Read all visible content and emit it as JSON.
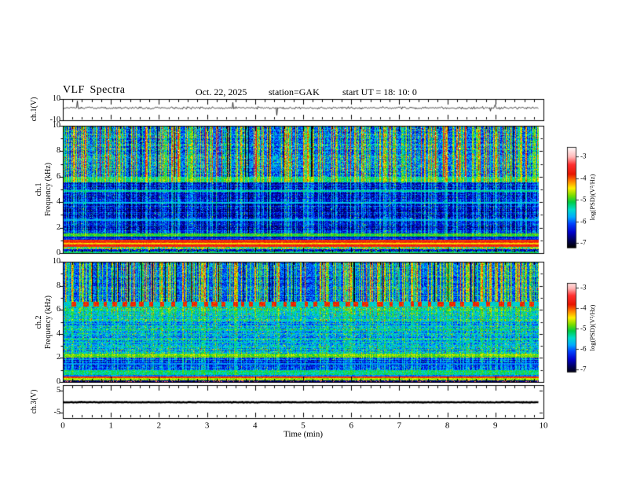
{
  "header": {
    "title": "VLF Spectra",
    "date": "Oct. 22, 2025",
    "station": "station=GAK",
    "start_ut": "start UT =   18: 10: 0"
  },
  "labels": {
    "wave1_y": "ch.1(V)",
    "spec1_ch": "ch.1",
    "spec1_axis": "Frequency (kHz)",
    "spec2_ch": "ch.2",
    "spec2_axis": "Frequency (kHz)",
    "wave3_y": "ch.3(V)",
    "x": "Time  (min)",
    "colorbar": "log(PSD)(V²/Hz)"
  },
  "ticks": {
    "x": [
      "0",
      "1",
      "2",
      "3",
      "4",
      "5",
      "6",
      "7",
      "8",
      "9",
      "10"
    ],
    "wave1_y": [
      {
        "t": "10",
        "v": 10
      },
      {
        "t": "-10",
        "v": -10
      }
    ],
    "spec_y": [
      {
        "t": "10",
        "v": 10
      },
      {
        "t": "8",
        "v": 8
      },
      {
        "t": "6",
        "v": 6
      },
      {
        "t": "4",
        "v": 4
      },
      {
        "t": "2",
        "v": 2
      },
      {
        "t": "0",
        "v": 0
      }
    ],
    "wave3_y": [
      {
        "t": "5",
        "v": 5
      },
      {
        "t": "-5",
        "v": -5
      }
    ],
    "colorbar": [
      {
        "t": "-3",
        "v": -3
      },
      {
        "t": "-4",
        "v": -4
      },
      {
        "t": "-5",
        "v": -5
      },
      {
        "t": "-6",
        "v": -6
      },
      {
        "t": "-7",
        "v": -7
      }
    ]
  },
  "chart_data": {
    "type": "heatmap",
    "title": "VLF Spectra",
    "subtitle": "Oct. 22, 2025  station=GAK  start UT = 18:10:0",
    "x": {
      "label": "Time (min)",
      "range": [
        0,
        10
      ],
      "major_step": 1,
      "minor_step": 0.2,
      "data_end": 9.9
    },
    "colorbar": {
      "label": "log(PSD)(V²/Hz)",
      "tick_values": [
        -3,
        -4,
        -5,
        -6,
        -7
      ],
      "range": [
        -7,
        -3
      ]
    },
    "colormap": [
      [
        -2.55,
        "#ffffff"
      ],
      [
        -3.0,
        "#ffb6b6"
      ],
      [
        -3.35,
        "#ff3030"
      ],
      [
        -3.8,
        "#e81500"
      ],
      [
        -4.1,
        "#ff7a00"
      ],
      [
        -4.45,
        "#ffee00"
      ],
      [
        -4.8,
        "#77dd00"
      ],
      [
        -5.1,
        "#00cc44"
      ],
      [
        -5.45,
        "#00ddcc"
      ],
      [
        -5.8,
        "#00aaff"
      ],
      [
        -6.1,
        "#0044ff"
      ],
      [
        -6.5,
        "#0000cc"
      ],
      [
        -6.85,
        "#000060"
      ],
      [
        -7.2,
        "#000000"
      ]
    ],
    "panels": [
      {
        "id": "wave1",
        "type": "line",
        "ylabel": "ch.1(V)",
        "ylim": [
          -10,
          10
        ],
        "baseline": 1.6,
        "noise": 0.55,
        "spike_prob": 0.013,
        "spike_amp": [
          2.5,
          7.0
        ],
        "thickness": 0.8
      },
      {
        "id": "spec1",
        "type": "spectrogram",
        "channel": "ch.1",
        "ylabel": "Frequency (kHz)",
        "ylim": [
          0,
          10
        ],
        "yticks": [
          0,
          2,
          4,
          6,
          8,
          10
        ],
        "streak_density": 0.48,
        "bands": [
          {
            "f": [
              6.0,
              10
            ],
            "base": -6.0,
            "rn": 0.25,
            "pn": 0.5,
            "sg": 2.0,
            "gap": 0.03,
            "red": 0.02,
            "speck": 0.03,
            "speck_add": 1.2
          },
          {
            "f": [
              5.55,
              6.0
            ],
            "base": -5.35,
            "rn": 0.15,
            "pn": 0.3,
            "sg": 1.2
          },
          {
            "f": [
              1.55,
              5.55
            ],
            "base": -6.55,
            "rn": 0.3,
            "pn": 0.4,
            "sg": 1.0,
            "gap": 0.02,
            "speck": 0.04,
            "speck_add": 1.0
          },
          {
            "f": [
              1.32,
              1.55
            ],
            "base": -5.1,
            "rn": 0.1,
            "pn": 0.25,
            "sg": 0.3
          },
          {
            "f": [
              1.05,
              1.32
            ],
            "base": -6.4,
            "rn": 0.15,
            "pn": 0.3,
            "sg": 0.4
          },
          {
            "f": [
              0.82,
              1.05
            ],
            "base": -3.8,
            "rn": 0.1,
            "pn": 0.25
          },
          {
            "f": [
              0.7,
              0.82
            ],
            "base": -4.35,
            "rn": 0.1,
            "pn": 0.2
          },
          {
            "f": [
              0.48,
              0.7
            ],
            "base": -3.65,
            "rn": 0.08,
            "pn": 0.2
          },
          {
            "f": [
              0.3,
              0.48
            ],
            "base": -5.0,
            "rn": 0.15,
            "pn": 0.9
          },
          {
            "f": [
              0.14,
              0.3
            ],
            "base": -6.4,
            "rn": 0.15,
            "pn": 0.4,
            "speck": 0.12,
            "speck_add": 1.5
          },
          {
            "f": [
              0,
              0.14
            ],
            "base": -5.2,
            "rn": 0.1,
            "pn": 0.3
          }
        ],
        "lines": [
          {
            "f": 4.9,
            "v": -5.35
          },
          {
            "f": 3.95,
            "v": -5.65
          },
          {
            "f": 2.6,
            "v": -5.75
          }
        ]
      },
      {
        "id": "spec2",
        "type": "spectrogram",
        "channel": "ch.2",
        "ylabel": "Frequency (kHz)",
        "ylim": [
          0,
          10
        ],
        "yticks": [
          0,
          2,
          4,
          6,
          8,
          10
        ],
        "streak_density": 0.5,
        "bands": [
          {
            "f": [
              6.65,
              10
            ],
            "base": -6.05,
            "rn": 0.25,
            "pn": 0.45,
            "sg": 2.0,
            "gap": 0.05,
            "speck": 0.03,
            "speck_add": 1.0
          },
          {
            "f": [
              6.25,
              6.65
            ],
            "base": -5.5,
            "rn": 0.15,
            "pn": 0.25,
            "sg": 0.3,
            "dash": true,
            "dash_v": -3.85
          },
          {
            "f": [
              5.0,
              6.25
            ],
            "base": -5.55,
            "rn": 0.3,
            "pn": 0.4,
            "sg": 0.7,
            "speck": 0.05,
            "speck_add": 1.0
          },
          {
            "f": [
              2.35,
              5.0
            ],
            "base": -5.8,
            "rn": 0.35,
            "pn": 0.45,
            "sg": 0.6,
            "speck": 0.05,
            "speck_add": 1.1
          },
          {
            "f": [
              2.0,
              2.35
            ],
            "base": -4.95,
            "rn": 0.15,
            "pn": 0.3,
            "sg": 0.3
          },
          {
            "f": [
              1.0,
              2.0
            ],
            "base": -6.35,
            "rn": 0.3,
            "pn": 0.4,
            "sg": 0.8,
            "speck": 0.04,
            "speck_add": 1.0
          },
          {
            "f": [
              0.62,
              1.0
            ],
            "base": -5.25,
            "rn": 0.2,
            "pn": 0.3,
            "sg": 0.3
          },
          {
            "f": [
              0.44,
              0.62
            ],
            "base": -5.95,
            "rn": 0.15,
            "pn": 0.3
          },
          {
            "f": [
              0.3,
              0.44
            ],
            "base": -3.85,
            "rn": 0.08,
            "pn": 0.15
          },
          {
            "f": [
              0.13,
              0.3
            ],
            "base": -4.75,
            "rn": 0.1,
            "pn": 0.25
          },
          {
            "f": [
              0,
              0.13
            ],
            "base": -6.85,
            "rn": 0.1,
            "pn": 0.3,
            "speck": 0.15,
            "speck_v": -3.2
          }
        ],
        "lines": [
          {
            "f": 4.35,
            "v": -5.2
          },
          {
            "f": 3.3,
            "v": -5.35
          },
          {
            "f": 1.5,
            "v": -5.9
          }
        ]
      },
      {
        "id": "wave3",
        "type": "line",
        "ylabel": "ch.3(V)",
        "ylim": [
          -7.5,
          7.5
        ],
        "baseline": -0.3,
        "noise": 0.06,
        "spike_prob": 0,
        "spike_amp": [
          0,
          0
        ],
        "thickness": 2.6
      }
    ]
  }
}
